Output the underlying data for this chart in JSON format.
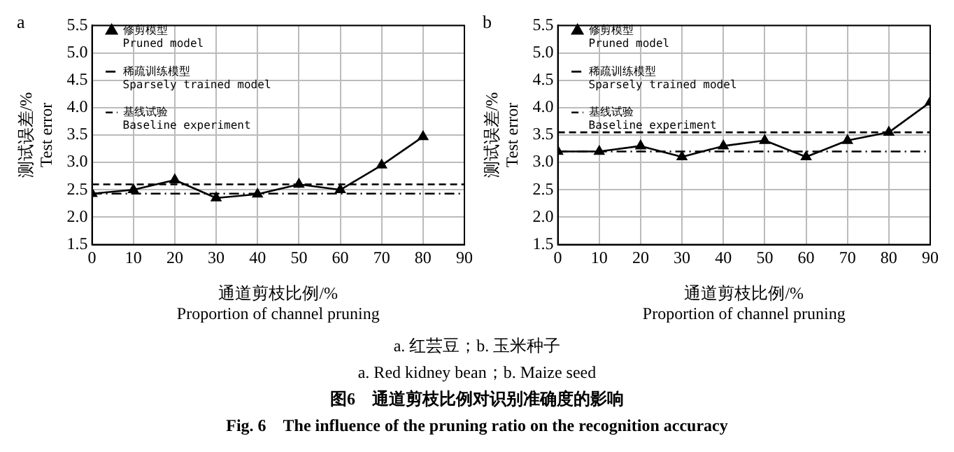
{
  "chart_data": [
    {
      "type": "line",
      "title": "a",
      "xlabel": "通道剪枝比例/%\nProportion of channel pruning",
      "ylabel": "测试误差/%\nTest error",
      "series": [
        {
          "name": "修剪模型\nPruned model",
          "color": "#000000",
          "x": [
            0,
            10,
            20,
            30,
            40,
            50,
            60,
            70,
            80
          ],
          "values": [
            2.43,
            2.5,
            2.68,
            2.35,
            2.42,
            2.6,
            2.5,
            2.95,
            3.47
          ]
        }
      ],
      "ref_lines": [
        {
          "axis": "y",
          "value": 2.43,
          "label": "稀疏训练模型\nSparsely trained model",
          "color": "#000000",
          "line_style": "dashdot"
        },
        {
          "axis": "y",
          "value": 2.6,
          "label": "基线试验\nBaseline experiment",
          "color": "#000000",
          "line_style": "dashed"
        }
      ],
      "xlim": [
        0,
        90
      ],
      "xticks": [
        0,
        10,
        20,
        30,
        40,
        50,
        60,
        70,
        80,
        90
      ],
      "ylim": [
        1.5,
        5.5
      ],
      "yticks": [
        1.5,
        {
          "value": 2,
          "label": "2.0"
        },
        2.5,
        {
          "value": 3,
          "label": "3.0"
        },
        3.5,
        {
          "value": 4,
          "label": "4.0"
        },
        4.5,
        {
          "value": 5,
          "label": "5.0"
        },
        5.5
      ],
      "grid": true,
      "legend": "top left",
      "marker": "triangle",
      "line_style": "solid",
      "annotations": [
        "a. 红芸豆；b. 玉米种子",
        "a. Red kidney bean；b. Maize seed",
        "图6　通道剪枝比例对识别准确度的影响",
        "Fig. 6　The influence of the pruning ratio on the recognition accuracy"
      ]
    },
    {
      "type": "line",
      "title": "b",
      "xlabel": "通道剪枝比例/%\nProportion of channel pruning",
      "ylabel": "测试误差/%\nTest error",
      "x": [
        0,
        10,
        20,
        30,
        40,
        50,
        60,
        70,
        80,
        90
      ],
      "series": [
        {
          "name": "修剪模型\nPruned model",
          "color": "#000000",
          "values": [
            3.2,
            3.2,
            3.3,
            3.1,
            3.3,
            3.4,
            3.1,
            3.4,
            3.55,
            4.1
          ]
        }
      ],
      "ref_lines": [
        {
          "axis": "y",
          "value": 3.2,
          "label": "稀疏训练模型\nSparsely trained model",
          "color": "#000000",
          "line_style": "dashdot"
        },
        {
          "axis": "y",
          "value": 3.55,
          "label": "基线试验\nBaseline experiment",
          "color": "#000000",
          "line_style": "dashed"
        }
      ],
      "xlim": [
        0,
        90
      ],
      "xticks": [
        0,
        10,
        20,
        30,
        40,
        50,
        60,
        70,
        80,
        90
      ],
      "ylim": [
        1.5,
        5.5
      ],
      "yticks": [
        1.5,
        {
          "value": 2,
          "label": "2.0"
        },
        2.5,
        {
          "value": 3,
          "label": "3.0"
        },
        3.5,
        {
          "value": 4,
          "label": "4.0"
        },
        4.5,
        {
          "value": 5,
          "label": "5.0"
        },
        5.5
      ],
      "grid": true,
      "legend": "top left",
      "marker": "triangle",
      "line_style": "solid"
    }
  ]
}
